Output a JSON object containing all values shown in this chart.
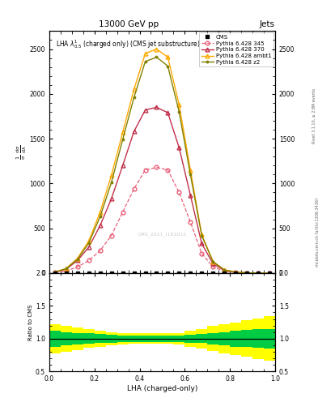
{
  "title_top": "13000 GeV pp",
  "title_right": "Jets",
  "plot_title": "LHA $\\lambda^{1}_{0.5}$ (charged only) (CMS jet substructure)",
  "xlabel": "LHA (charged-only)",
  "ylabel_ratio": "Ratio to CMS",
  "cms_watermark": "CMS_2021_I192015",
  "rivet_label": "Rivet 3.1.10, ≥ 2.8M events",
  "mcplots_label": "mcplots.cern.ch [arXiv:1306.3436]",
  "cms_data_x": [
    0.025,
    0.075,
    0.125,
    0.175,
    0.225,
    0.275,
    0.325,
    0.375,
    0.425,
    0.475,
    0.525,
    0.575,
    0.625,
    0.675,
    0.725,
    0.775,
    0.825,
    0.875,
    0.925,
    0.975
  ],
  "cms_data_y": [
    0,
    0,
    0,
    0,
    0,
    0,
    0,
    0,
    0,
    0,
    0,
    0,
    0,
    0,
    0,
    0,
    0,
    0,
    0,
    0
  ],
  "p345_x": [
    0.025,
    0.075,
    0.125,
    0.175,
    0.225,
    0.275,
    0.325,
    0.375,
    0.425,
    0.475,
    0.525,
    0.575,
    0.625,
    0.675,
    0.725,
    0.775,
    0.825,
    0.875,
    0.925,
    0.975
  ],
  "p345_y": [
    5,
    25,
    70,
    140,
    250,
    420,
    680,
    940,
    1150,
    1180,
    1150,
    900,
    570,
    220,
    70,
    22,
    8,
    3,
    1,
    0
  ],
  "p370_x": [
    0.025,
    0.075,
    0.125,
    0.175,
    0.225,
    0.275,
    0.325,
    0.375,
    0.425,
    0.475,
    0.525,
    0.575,
    0.625,
    0.675,
    0.725,
    0.775,
    0.825,
    0.875,
    0.925,
    0.975
  ],
  "p370_y": [
    10,
    45,
    140,
    290,
    530,
    830,
    1200,
    1580,
    1820,
    1850,
    1790,
    1400,
    870,
    330,
    105,
    30,
    9,
    3,
    1,
    0
  ],
  "pambt1_x": [
    0.025,
    0.075,
    0.125,
    0.175,
    0.225,
    0.275,
    0.325,
    0.375,
    0.425,
    0.475,
    0.525,
    0.575,
    0.625,
    0.675,
    0.725,
    0.775,
    0.825,
    0.875,
    0.925,
    0.975
  ],
  "pambt1_y": [
    12,
    52,
    165,
    360,
    680,
    1090,
    1570,
    2050,
    2450,
    2500,
    2410,
    1880,
    1150,
    430,
    130,
    38,
    11,
    4,
    1,
    0
  ],
  "pz2_x": [
    0.025,
    0.075,
    0.125,
    0.175,
    0.225,
    0.275,
    0.325,
    0.375,
    0.425,
    0.475,
    0.525,
    0.575,
    0.625,
    0.675,
    0.725,
    0.775,
    0.825,
    0.875,
    0.925,
    0.975
  ],
  "pz2_y": [
    11,
    50,
    155,
    335,
    630,
    1010,
    1490,
    1960,
    2360,
    2410,
    2310,
    1800,
    1100,
    420,
    128,
    36,
    11,
    4,
    1,
    0
  ],
  "ratio_x_edges": [
    0.0,
    0.05,
    0.1,
    0.15,
    0.2,
    0.25,
    0.3,
    0.35,
    0.4,
    0.45,
    0.5,
    0.55,
    0.6,
    0.65,
    0.7,
    0.75,
    0.8,
    0.85,
    0.9,
    0.95,
    1.0
  ],
  "ratio_green_low": [
    0.88,
    0.9,
    0.91,
    0.92,
    0.93,
    0.94,
    0.95,
    0.95,
    0.95,
    0.95,
    0.95,
    0.95,
    0.94,
    0.93,
    0.91,
    0.9,
    0.88,
    0.87,
    0.86,
    0.85
  ],
  "ratio_green_high": [
    1.12,
    1.1,
    1.09,
    1.08,
    1.07,
    1.06,
    1.05,
    1.05,
    1.05,
    1.05,
    1.05,
    1.05,
    1.06,
    1.07,
    1.09,
    1.1,
    1.12,
    1.13,
    1.14,
    1.15
  ],
  "ratio_yellow_low": [
    0.78,
    0.8,
    0.83,
    0.86,
    0.88,
    0.9,
    0.91,
    0.92,
    0.92,
    0.92,
    0.92,
    0.91,
    0.88,
    0.85,
    0.81,
    0.78,
    0.75,
    0.72,
    0.69,
    0.66
  ],
  "ratio_yellow_high": [
    1.22,
    1.2,
    1.17,
    1.14,
    1.12,
    1.1,
    1.09,
    1.08,
    1.08,
    1.08,
    1.08,
    1.09,
    1.12,
    1.15,
    1.19,
    1.22,
    1.25,
    1.28,
    1.31,
    1.34
  ],
  "color_345": "#e8607a",
  "color_370": "#c0304a",
  "color_ambt1": "#ffaa00",
  "color_z2": "#808000",
  "color_cms": "black",
  "ylim_main": [
    0,
    2700
  ],
  "ylim_ratio": [
    0.5,
    2.0
  ],
  "xlim": [
    0.0,
    1.0
  ]
}
